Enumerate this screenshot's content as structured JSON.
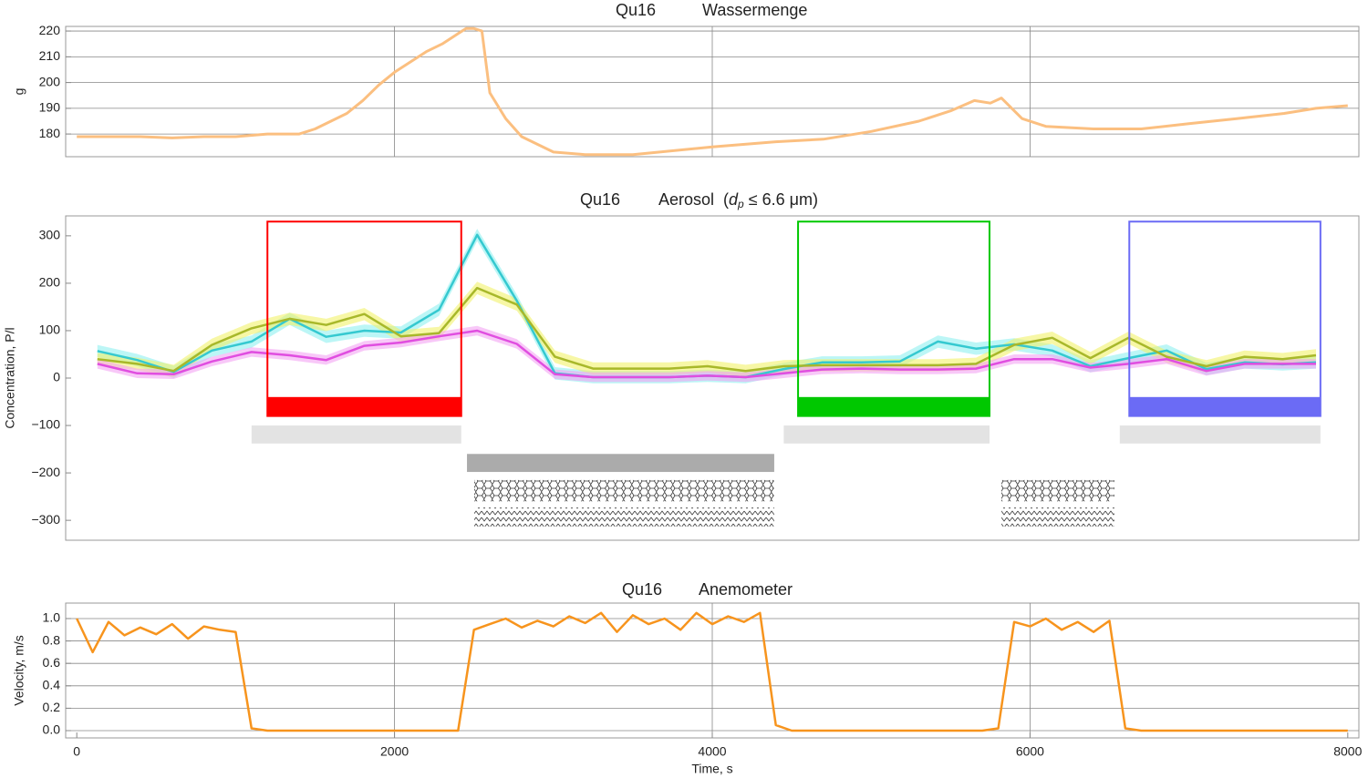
{
  "chart_data": [
    {
      "type": "line",
      "title_left": "Qu16",
      "title": "Wassermenge",
      "ylabel": "g",
      "x": [
        0,
        200,
        400,
        600,
        800,
        1000,
        1200,
        1400,
        1500,
        1600,
        1700,
        1800,
        1900,
        2000,
        2100,
        2200,
        2300,
        2400,
        2450,
        2500,
        2550,
        2600,
        2700,
        2800,
        3000,
        3200,
        3500,
        4000,
        4400,
        4700,
        5000,
        5300,
        5500,
        5650,
        5750,
        5820,
        5950,
        6100,
        6400,
        6700,
        7000,
        7300,
        7600,
        7800,
        8000
      ],
      "series": [
        {
          "color": "#fbbf80",
          "values": [
            179,
            179,
            179,
            178.5,
            179,
            179,
            180,
            180,
            182,
            185,
            188,
            193,
            199,
            204,
            208,
            212,
            215,
            219,
            221,
            221,
            220,
            196,
            186,
            179,
            173,
            172,
            172,
            175,
            177,
            178,
            181,
            185,
            189,
            193,
            192,
            194,
            186,
            183,
            182,
            182,
            184,
            186,
            188,
            190,
            191
          ]
        }
      ],
      "xlim": [
        -70,
        8070
      ],
      "ylim": [
        171.2,
        221.8
      ],
      "yticks": [
        180,
        190,
        200,
        210,
        220
      ],
      "grid": true,
      "xgrid": [
        2000,
        4000,
        6000
      ]
    },
    {
      "type": "band-line",
      "title_left": "Qu16",
      "title": "Aerosol",
      "title_note": [
        "(",
        "d",
        "p",
        " ≤ 6.6 μm)"
      ],
      "ylabel": "Concentration, P/l",
      "x": [
        130,
        380,
        610,
        850,
        1100,
        1340,
        1570,
        1810,
        2040,
        2280,
        2520,
        2770,
        3010,
        3250,
        3490,
        3730,
        3970,
        4210,
        4450,
        4690,
        4940,
        5180,
        5420,
        5660,
        5900,
        6140,
        6380,
        6620,
        6860,
        7110,
        7350,
        7590,
        7800
      ],
      "series": [
        {
          "color": "#35c9d0",
          "band_color": "#8ff0f0",
          "band": 13,
          "values": [
            57,
            38,
            13,
            58,
            77,
            125,
            87,
            100,
            96,
            144,
            302,
            163,
            10,
            2,
            2,
            2,
            5,
            2,
            19,
            33,
            33,
            35,
            77,
            62,
            71,
            58,
            25,
            42,
            58,
            19,
            33,
            29,
            33
          ]
        },
        {
          "color": "#a8b82a",
          "band_color": "#f2f26a",
          "band": 13,
          "values": [
            40,
            30,
            15,
            70,
            105,
            125,
            112,
            135,
            88,
            95,
            190,
            155,
            45,
            20,
            20,
            20,
            25,
            15,
            25,
            27,
            27,
            27,
            27,
            30,
            70,
            85,
            42,
            85,
            45,
            25,
            45,
            40,
            48
          ]
        },
        {
          "color": "#e04ee0",
          "band_color": "#f4a4f4",
          "band": 10,
          "values": [
            30,
            10,
            8,
            35,
            55,
            48,
            38,
            68,
            75,
            88,
            100,
            72,
            8,
            2,
            2,
            2,
            5,
            2,
            10,
            18,
            20,
            18,
            18,
            20,
            40,
            40,
            22,
            30,
            40,
            15,
            30,
            30,
            30
          ]
        }
      ],
      "boxes": [
        {
          "x": [
            1200,
            2420
          ],
          "y": [
            -80,
            330
          ],
          "bar": [
            -80,
            -40
          ],
          "color": "#ff0000"
        },
        {
          "x": [
            4540,
            5745
          ],
          "y": [
            -80,
            330
          ],
          "bar": [
            -80,
            -40
          ],
          "color": "#00c800"
        },
        {
          "x": [
            6625,
            7828
          ],
          "y": [
            -80,
            330
          ],
          "bar": [
            -80,
            -40
          ],
          "color": "#6b6bf5"
        }
      ],
      "strips": [
        {
          "x": [
            1100,
            2420
          ],
          "y": [
            -138,
            -100
          ],
          "fill": "#e3e3e3"
        },
        {
          "x": [
            4450,
            5745
          ],
          "y": [
            -138,
            -100
          ],
          "fill": "#e3e3e3"
        },
        {
          "x": [
            6565,
            7828
          ],
          "y": [
            -138,
            -100
          ],
          "fill": "#e3e3e3"
        },
        {
          "x": [
            2456,
            4390
          ],
          "y": [
            -198,
            -160
          ],
          "fill": "#ababab"
        },
        {
          "x": [
            2502,
            4390
          ],
          "y": [
            -260,
            -215
          ],
          "fill": "hex"
        },
        {
          "x": [
            5820,
            6531
          ],
          "y": [
            -260,
            -215
          ],
          "fill": "hex"
        },
        {
          "x": [
            2502,
            4390
          ],
          "y": [
            -313,
            -273
          ],
          "fill": "zigzag"
        },
        {
          "x": [
            5820,
            6531
          ],
          "y": [
            -313,
            -273
          ],
          "fill": "zigzag"
        }
      ],
      "xlim": [
        -70,
        8070
      ],
      "ylim": [
        -342,
        342
      ],
      "yticks": [
        {
          "value": -300,
          "label": "−300"
        },
        {
          "value": -200,
          "label": "−200"
        },
        {
          "value": -100,
          "label": "−100"
        },
        0,
        100,
        200,
        300
      ]
    },
    {
      "type": "line",
      "title_left": "Qu16",
      "title": "Anemometer",
      "ylabel": "Velocity, m/s",
      "xlabel": "Time, s",
      "x": [
        0,
        100,
        200,
        300,
        400,
        500,
        600,
        700,
        800,
        900,
        1000,
        1100,
        1200,
        1300,
        1400,
        1500,
        1600,
        1700,
        1800,
        1900,
        2000,
        2100,
        2200,
        2300,
        2400,
        2500,
        2600,
        2700,
        2800,
        2900,
        3000,
        3100,
        3200,
        3300,
        3400,
        3500,
        3600,
        3700,
        3800,
        3900,
        4000,
        4100,
        4200,
        4300,
        4400,
        4500,
        4600,
        4700,
        4800,
        4900,
        5000,
        5100,
        5200,
        5300,
        5400,
        5500,
        5600,
        5700,
        5800,
        5900,
        6000,
        6100,
        6200,
        6300,
        6400,
        6500,
        6600,
        6700,
        6800,
        6900,
        7000,
        7100,
        7200,
        7300,
        7400,
        7500,
        7600,
        7700,
        7800,
        7900,
        8000
      ],
      "series": [
        {
          "color": "#f7941d",
          "values": [
            1.0,
            0.7,
            0.97,
            0.85,
            0.92,
            0.86,
            0.95,
            0.82,
            0.93,
            0.9,
            0.88,
            0.02,
            0,
            0,
            0,
            0,
            0,
            0,
            0,
            0,
            0,
            0,
            0,
            0,
            0,
            0.9,
            0.95,
            1.0,
            0.92,
            0.98,
            0.93,
            1.02,
            0.96,
            1.05,
            0.88,
            1.03,
            0.95,
            1.0,
            0.9,
            1.05,
            0.95,
            1.02,
            0.97,
            1.05,
            0.05,
            0,
            0,
            0,
            0,
            0,
            0,
            0,
            0,
            0,
            0,
            0,
            0,
            0,
            0.02,
            0.97,
            0.93,
            1.0,
            0.9,
            0.97,
            0.88,
            0.98,
            0.02,
            0,
            0,
            0,
            0,
            0,
            0,
            0,
            0,
            0,
            0,
            0,
            0,
            0,
            0
          ]
        }
      ],
      "xlim": [
        -70,
        8070
      ],
      "ylim": [
        -0.065,
        1.138
      ],
      "xticks": [
        0,
        2000,
        4000,
        6000,
        8000
      ],
      "xgrid": [
        2000,
        4000,
        6000
      ],
      "yticks": [
        {
          "value": 0,
          "label": "0.0"
        },
        {
          "value": 0.2,
          "label": "0.2"
        },
        {
          "value": 0.4,
          "label": "0.4"
        },
        {
          "value": 0.6,
          "label": "0.6"
        },
        {
          "value": 0.8,
          "label": "0.8"
        },
        {
          "value": 1.0,
          "label": "1.0"
        }
      ],
      "grid": true
    }
  ]
}
